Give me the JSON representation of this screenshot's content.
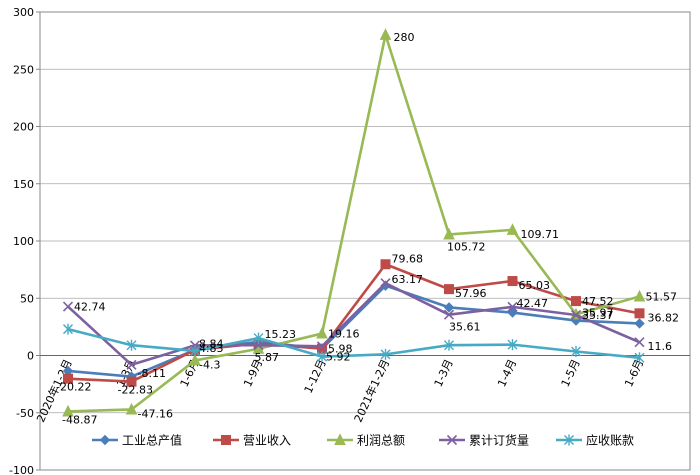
{
  "chart_data": {
    "type": "line",
    "title": "",
    "xlabel": "",
    "ylabel": "",
    "ylim": [
      -100,
      300
    ],
    "yticks": [
      -100,
      -50,
      0,
      50,
      100,
      150,
      200,
      250,
      300
    ],
    "grid": "horizontal",
    "legend_position": "bottom",
    "categories": [
      "2020年1-2月",
      "1-3月",
      "1-6月",
      "1-9月",
      "1-12月",
      "2021年1-2月",
      "1-3月",
      "1-4月",
      "1-5月",
      "1-6月"
    ],
    "series": [
      {
        "name": "工业总产值",
        "color": "#4A7EBB",
        "marker": "diamond",
        "values": [
          -13.5,
          -18.4,
          5.0,
          12.0,
          5.98,
          61.0,
          42.0,
          37.5,
          30.5,
          28.0
        ],
        "labels": [
          "",
          "",
          "",
          "",
          "5.98",
          "",
          "",
          "",
          "",
          ""
        ]
      },
      {
        "name": "营业收入",
        "color": "#BE4B48",
        "marker": "square",
        "values": [
          -20.22,
          -22.83,
          4.83,
          10.5,
          5.92,
          79.68,
          57.96,
          65.03,
          47.52,
          36.82
        ],
        "labels": [
          "-20.22",
          "-22.83",
          "4.83",
          "",
          "5.92",
          "79.68",
          "57.96",
          "65.03",
          "47.52",
          "36.82"
        ]
      },
      {
        "name": "利润总额",
        "color": "#98B954",
        "marker": "triangle",
        "values": [
          -48.87,
          -47.16,
          -4.3,
          5.87,
          19.16,
          280,
          105.72,
          109.71,
          35.97,
          51.57
        ],
        "labels": [
          "-48.87",
          "-47.16",
          "-4.3",
          "5.87",
          "19.16",
          "280",
          "105.72",
          "109.71",
          "35.97",
          "51.57"
        ]
      },
      {
        "name": "累计订货量",
        "color": "#7D60A0",
        "marker": "x",
        "values": [
          42.74,
          -8.11,
          8.84,
          9.0,
          8.0,
          63.17,
          35.61,
          42.47,
          35.37,
          11.6
        ],
        "labels": [
          "42.74",
          "-8.11",
          "8.84",
          "",
          "",
          "63.17",
          "35.61",
          "42.47",
          "35.37",
          "11.6"
        ]
      },
      {
        "name": "应收账款",
        "color": "#46AAC5",
        "marker": "star",
        "values": [
          23.0,
          9.0,
          4.0,
          15.23,
          -1.0,
          1.0,
          9.0,
          9.5,
          3.5,
          -2.0
        ],
        "labels": [
          "",
          "",
          "",
          "15.23",
          "",
          "",
          "",
          "",
          "",
          ""
        ]
      }
    ]
  }
}
